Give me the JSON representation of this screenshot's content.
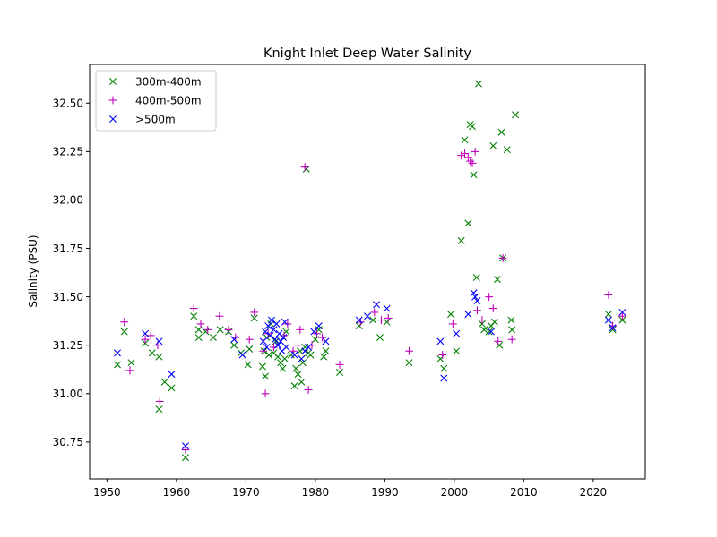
{
  "chart_data": {
    "type": "scatter",
    "title": "Knight Inlet Deep Water Salinity",
    "xlabel": "",
    "ylabel": "Salinity (PSU)",
    "xlim": [
      1947.5,
      2027.5
    ],
    "ylim": [
      30.56,
      32.7
    ],
    "xticks": [
      1950,
      1960,
      1970,
      1980,
      1990,
      2000,
      2010,
      2020
    ],
    "yticks": [
      30.75,
      31.0,
      31.25,
      31.5,
      31.75,
      32.0,
      32.25,
      32.5
    ],
    "grid": false,
    "legend_position": "top-left",
    "series": [
      {
        "name": "300m-400m",
        "marker": "x",
        "color": "#008000",
        "points": [
          [
            1951.5,
            31.15
          ],
          [
            1952.5,
            31.32
          ],
          [
            1953.5,
            31.16
          ],
          [
            1955.5,
            31.26
          ],
          [
            1956.5,
            31.21
          ],
          [
            1957.5,
            31.19
          ],
          [
            1957.5,
            30.92
          ],
          [
            1958.3,
            31.06
          ],
          [
            1959.3,
            31.03
          ],
          [
            1961.3,
            30.67
          ],
          [
            1962.5,
            31.4
          ],
          [
            1963.2,
            31.29
          ],
          [
            1963.2,
            31.33
          ],
          [
            1964.2,
            31.32
          ],
          [
            1965.3,
            31.29
          ],
          [
            1966.3,
            31.33
          ],
          [
            1967.5,
            31.32
          ],
          [
            1968.3,
            31.25
          ],
          [
            1969.3,
            31.21
          ],
          [
            1970.3,
            31.15
          ],
          [
            1970.5,
            31.23
          ],
          [
            1971.2,
            31.39
          ],
          [
            1972.4,
            31.14
          ],
          [
            1972.6,
            31.22
          ],
          [
            1972.8,
            31.09
          ],
          [
            1973.0,
            31.29
          ],
          [
            1973.3,
            31.2
          ],
          [
            1973.6,
            31.36
          ],
          [
            1974.0,
            31.21
          ],
          [
            1974.3,
            31.27
          ],
          [
            1974.6,
            31.19
          ],
          [
            1975.0,
            31.16
          ],
          [
            1975.3,
            31.13
          ],
          [
            1975.6,
            31.18
          ],
          [
            1975.8,
            31.32
          ],
          [
            1976.5,
            31.2
          ],
          [
            1977.0,
            31.04
          ],
          [
            1977.2,
            31.13
          ],
          [
            1977.5,
            31.1
          ],
          [
            1977.8,
            31.22
          ],
          [
            1978.0,
            31.06
          ],
          [
            1978.2,
            31.16
          ],
          [
            1978.5,
            31.24
          ],
          [
            1978.7,
            32.16
          ],
          [
            1979.0,
            31.21
          ],
          [
            1979.3,
            31.2
          ],
          [
            1980.0,
            31.28
          ],
          [
            1980.5,
            31.33
          ],
          [
            1981.2,
            31.19
          ],
          [
            1981.5,
            31.22
          ],
          [
            1983.5,
            31.11
          ],
          [
            1986.3,
            31.35
          ],
          [
            1988.3,
            31.38
          ],
          [
            1989.3,
            31.29
          ],
          [
            1990.3,
            31.37
          ],
          [
            1993.5,
            31.16
          ],
          [
            1998.0,
            31.18
          ],
          [
            1998.5,
            31.13
          ],
          [
            1999.5,
            31.41
          ],
          [
            2000.3,
            31.22
          ],
          [
            2001.0,
            31.79
          ],
          [
            2001.5,
            32.31
          ],
          [
            2002.0,
            31.88
          ],
          [
            2002.3,
            32.39
          ],
          [
            2002.6,
            32.38
          ],
          [
            2002.8,
            32.13
          ],
          [
            2003.2,
            31.6
          ],
          [
            2003.5,
            32.6
          ],
          [
            2004.0,
            31.36
          ],
          [
            2004.3,
            31.33
          ],
          [
            2005.0,
            31.32
          ],
          [
            2005.3,
            31.35
          ],
          [
            2005.6,
            32.28
          ],
          [
            2005.8,
            31.37
          ],
          [
            2006.2,
            31.59
          ],
          [
            2006.5,
            31.25
          ],
          [
            2006.8,
            32.35
          ],
          [
            2007.0,
            31.7
          ],
          [
            2007.6,
            32.26
          ],
          [
            2008.2,
            31.38
          ],
          [
            2008.3,
            31.33
          ],
          [
            2008.8,
            32.44
          ],
          [
            2022.2,
            31.41
          ],
          [
            2022.8,
            31.33
          ],
          [
            2024.2,
            31.38
          ]
        ]
      },
      {
        "name": "400m-500m",
        "marker": "+",
        "color": "#bf00bf",
        "points": [
          [
            1952.5,
            31.37
          ],
          [
            1953.3,
            31.12
          ],
          [
            1955.5,
            31.28
          ],
          [
            1956.3,
            31.3
          ],
          [
            1957.3,
            31.25
          ],
          [
            1957.6,
            30.96
          ],
          [
            1961.3,
            30.71
          ],
          [
            1962.5,
            31.44
          ],
          [
            1963.5,
            31.36
          ],
          [
            1964.5,
            31.33
          ],
          [
            1966.2,
            31.4
          ],
          [
            1967.5,
            31.33
          ],
          [
            1968.5,
            31.29
          ],
          [
            1970.5,
            31.28
          ],
          [
            1971.2,
            31.42
          ],
          [
            1972.5,
            31.22
          ],
          [
            1972.8,
            31.0
          ],
          [
            1973.2,
            31.31
          ],
          [
            1974.0,
            31.24
          ],
          [
            1975.5,
            31.3
          ],
          [
            1976.0,
            31.36
          ],
          [
            1976.8,
            31.22
          ],
          [
            1977.5,
            31.25
          ],
          [
            1977.8,
            31.33
          ],
          [
            1978.5,
            32.17
          ],
          [
            1979.0,
            31.02
          ],
          [
            1979.5,
            31.25
          ],
          [
            1980.2,
            31.31
          ],
          [
            1981.0,
            31.29
          ],
          [
            1983.5,
            31.15
          ],
          [
            1986.5,
            31.37
          ],
          [
            1988.5,
            31.42
          ],
          [
            1989.5,
            31.38
          ],
          [
            1990.5,
            31.39
          ],
          [
            1993.5,
            31.22
          ],
          [
            1998.3,
            31.2
          ],
          [
            1999.8,
            31.36
          ],
          [
            2001.0,
            32.23
          ],
          [
            2001.5,
            32.24
          ],
          [
            2002.0,
            32.22
          ],
          [
            2002.3,
            32.2
          ],
          [
            2002.6,
            32.19
          ],
          [
            2003.0,
            32.25
          ],
          [
            2003.3,
            31.43
          ],
          [
            2004.0,
            31.38
          ],
          [
            2005.0,
            31.5
          ],
          [
            2005.6,
            31.44
          ],
          [
            2006.3,
            31.27
          ],
          [
            2007.0,
            31.7
          ],
          [
            2008.3,
            31.28
          ],
          [
            2022.2,
            31.51
          ],
          [
            2022.8,
            31.35
          ],
          [
            2024.2,
            31.4
          ]
        ]
      },
      {
        "name": ">500m",
        "marker": "x",
        "color": "#0000ff",
        "points": [
          [
            1951.5,
            31.21
          ],
          [
            1955.5,
            31.31
          ],
          [
            1957.5,
            31.27
          ],
          [
            1959.3,
            31.1
          ],
          [
            1961.3,
            30.73
          ],
          [
            1968.3,
            31.28
          ],
          [
            1969.5,
            31.2
          ],
          [
            1972.5,
            31.27
          ],
          [
            1972.8,
            31.32
          ],
          [
            1973.0,
            31.24
          ],
          [
            1973.2,
            31.35
          ],
          [
            1973.5,
            31.3
          ],
          [
            1973.7,
            31.38
          ],
          [
            1974.0,
            31.33
          ],
          [
            1974.2,
            31.28
          ],
          [
            1974.4,
            31.36
          ],
          [
            1974.6,
            31.25
          ],
          [
            1974.8,
            31.31
          ],
          [
            1975.0,
            31.27
          ],
          [
            1975.2,
            31.22
          ],
          [
            1975.4,
            31.29
          ],
          [
            1975.6,
            31.37
          ],
          [
            1975.8,
            31.24
          ],
          [
            1977.0,
            31.2
          ],
          [
            1978.0,
            31.18
          ],
          [
            1978.5,
            31.22
          ],
          [
            1979.0,
            31.24
          ],
          [
            1979.8,
            31.32
          ],
          [
            1980.5,
            31.35
          ],
          [
            1981.5,
            31.27
          ],
          [
            1986.3,
            31.38
          ],
          [
            1987.5,
            31.4
          ],
          [
            1988.8,
            31.46
          ],
          [
            1990.3,
            31.44
          ],
          [
            1998.0,
            31.27
          ],
          [
            1998.5,
            31.08
          ],
          [
            2000.3,
            31.31
          ],
          [
            2002.0,
            31.41
          ],
          [
            2002.8,
            31.52
          ],
          [
            2003.0,
            31.5
          ],
          [
            2003.3,
            31.48
          ],
          [
            2005.3,
            31.32
          ],
          [
            2022.2,
            31.38
          ],
          [
            2022.8,
            31.34
          ],
          [
            2024.2,
            31.42
          ]
        ]
      }
    ]
  }
}
